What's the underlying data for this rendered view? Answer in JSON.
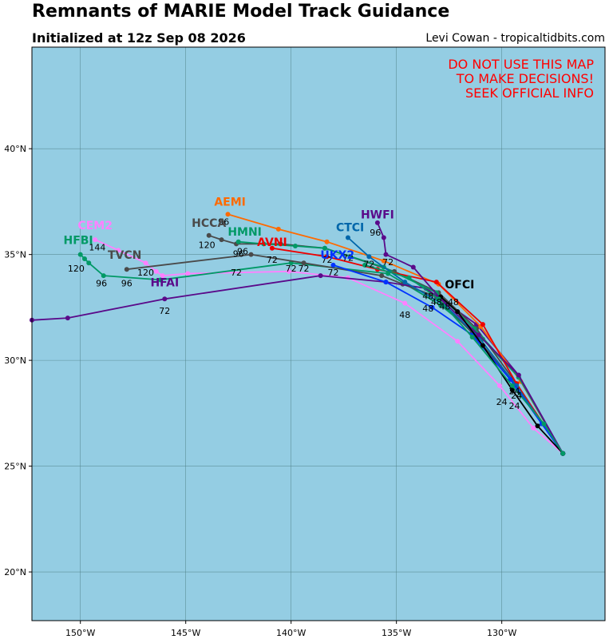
{
  "header": {
    "title": "Remnants of MARIE Model Track Guidance",
    "subtitle": "Initialized at 12z Sep 08 2026",
    "credit": "Levi Cowan - tropicaltidbits.com"
  },
  "warning": [
    "DO NOT USE THIS MAP",
    "TO MAKE DECISIONS!",
    "SEEK OFFICIAL INFO"
  ],
  "colors": {
    "ocean": "#94cde3",
    "grid": "#4f7f86",
    "frame": "#000000"
  },
  "axes": {
    "lon_ticks": [
      {
        "v": -150,
        "label": "150°W"
      },
      {
        "v": -145,
        "label": "145°W"
      },
      {
        "v": -140,
        "label": "140°W"
      },
      {
        "v": -135,
        "label": "135°W"
      },
      {
        "v": -130,
        "label": "130°W"
      }
    ],
    "lat_ticks": [
      {
        "v": 40,
        "label": "40°N"
      },
      {
        "v": 35,
        "label": "35°N"
      },
      {
        "v": 30,
        "label": "30°N"
      },
      {
        "v": 25,
        "label": "25°N"
      },
      {
        "v": 20,
        "label": "20°N"
      }
    ],
    "lon_range": [
      -152.3,
      -125.1
    ],
    "lat_range": [
      17.7,
      44.8
    ]
  },
  "chart_data": {
    "type": "line",
    "x_unit": "longitude (degrees, negative = W)",
    "y_unit": "latitude (degrees N)",
    "series": [
      {
        "name": "CEM2",
        "color": "#ff80ff",
        "label_text": "CEM2",
        "label_at": [
          -149.3,
          36.2
        ],
        "points": [
          [
            -127.1,
            25.6
          ],
          [
            -128.5,
            26.8
          ],
          [
            -130.1,
            28.8
          ],
          [
            -132.1,
            30.9
          ],
          [
            -134.6,
            32.7
          ],
          [
            -137.3,
            33.9
          ],
          [
            -140.1,
            34.2
          ],
          [
            -144.9,
            34.1
          ],
          [
            -146.1,
            34.0
          ],
          [
            -146.4,
            34.2
          ],
          [
            -146.9,
            34.6
          ],
          [
            -148.2,
            35.2
          ],
          [
            -149.3,
            35.7
          ]
        ],
        "hour_labels": [
          {
            "text": "48",
            "at": [
              -134.6,
              32.0
            ]
          },
          {
            "text": "144",
            "at": [
              -149.2,
              35.2
            ]
          }
        ]
      },
      {
        "name": "HFBI",
        "color": "#009966",
        "label_text": "HFBI",
        "label_at": [
          -150.1,
          35.5
        ],
        "points": [
          [
            -127.1,
            25.6
          ],
          [
            -129.2,
            29.2
          ],
          [
            -130.9,
            31.0
          ],
          [
            -132.9,
            32.6
          ],
          [
            -135.4,
            34.1
          ],
          [
            -140.0,
            34.6
          ],
          [
            -146.2,
            33.8
          ],
          [
            -148.9,
            34.0
          ],
          [
            -149.6,
            34.6
          ],
          [
            -149.8,
            34.8
          ],
          [
            -150.0,
            35.0
          ]
        ],
        "hour_labels": [
          {
            "text": "120",
            "at": [
              -150.2,
              34.2
            ]
          },
          {
            "text": "96",
            "at": [
              -149.0,
              33.5
            ]
          }
        ]
      },
      {
        "name": "TVCN",
        "color": "#4a4a4a",
        "label_text": "TVCN",
        "label_at": [
          -147.9,
          34.8
        ],
        "points": [
          [
            -127.1,
            25.6
          ],
          [
            -129.3,
            28.8
          ],
          [
            -131.4,
            31.3
          ],
          [
            -133.1,
            33.0
          ],
          [
            -134.7,
            33.6
          ],
          [
            -135.7,
            34.0
          ],
          [
            -139.4,
            34.6
          ],
          [
            -141.9,
            35.0
          ],
          [
            -147.8,
            34.3
          ]
        ],
        "hour_labels": [
          {
            "text": "96",
            "at": [
              -147.8,
              33.5
            ]
          },
          {
            "text": "120",
            "at": [
              -146.9,
              34.0
            ]
          }
        ]
      },
      {
        "name": "HFAI",
        "color": "#5a0a8a",
        "label_text": "HFAI",
        "label_at": [
          -146.0,
          33.5
        ],
        "points": [
          [
            -127.1,
            25.6
          ],
          [
            -129.2,
            29.3
          ],
          [
            -131.2,
            31.7
          ],
          [
            -133.6,
            33.4
          ],
          [
            -135.5,
            33.7
          ],
          [
            -138.6,
            34.0
          ],
          [
            -146.0,
            32.9
          ],
          [
            -150.6,
            32.0
          ],
          [
            -152.3,
            31.9
          ]
        ],
        "hour_labels": [
          {
            "text": "72",
            "at": [
              -146.0,
              32.2
            ]
          }
        ]
      },
      {
        "name": "AEMI",
        "color": "#ff6a00",
        "label_text": "AEMI",
        "label_at": [
          -142.9,
          37.3
        ],
        "points": [
          [
            -127.1,
            25.6
          ],
          [
            -129.1,
            29.0
          ],
          [
            -131.0,
            31.6
          ],
          [
            -133.0,
            33.6
          ],
          [
            -135.6,
            34.7
          ],
          [
            -138.3,
            35.6
          ],
          [
            -140.6,
            36.2
          ],
          [
            -143.0,
            36.9
          ]
        ],
        "hour_labels": [
          {
            "text": "96",
            "at": [
              -143.2,
              36.4
            ]
          }
        ]
      },
      {
        "name": "HCCA",
        "color": "#4a4a4a",
        "label_text": "HCCA",
        "label_at": [
          -143.9,
          36.3
        ],
        "points": [
          [
            -127.1,
            25.6
          ],
          [
            -129.3,
            28.9
          ],
          [
            -131.2,
            31.5
          ],
          [
            -133.0,
            33.2
          ],
          [
            -135.1,
            34.2
          ],
          [
            -138.4,
            35.3
          ],
          [
            -140.5,
            35.5
          ],
          [
            -142.6,
            35.5
          ],
          [
            -143.3,
            35.7
          ],
          [
            -143.9,
            35.9
          ]
        ],
        "hour_labels": [
          {
            "text": "120",
            "at": [
              -144.0,
              35.3
            ]
          },
          {
            "text": "96",
            "at": [
              -142.5,
              34.9
            ]
          }
        ]
      },
      {
        "name": "HMNI",
        "color": "#009966",
        "label_text": "HMNI",
        "label_at": [
          -142.2,
          35.9
        ],
        "points": [
          [
            -127.1,
            25.6
          ],
          [
            -129.2,
            29.2
          ],
          [
            -131.3,
            31.5
          ],
          [
            -133.1,
            33.2
          ],
          [
            -135.6,
            34.4
          ],
          [
            -138.4,
            35.3
          ],
          [
            -139.8,
            35.4
          ],
          [
            -141.3,
            35.5
          ],
          [
            -142.5,
            35.6
          ]
        ],
        "hour_labels": [
          {
            "text": "96",
            "at": [
              -142.3,
              35.0
            ]
          }
        ]
      },
      {
        "name": "AVNI",
        "color": "#ee0000",
        "label_text": "AVNI",
        "label_at": [
          -140.9,
          35.4
        ],
        "points": [
          [
            -127.1,
            25.6
          ],
          [
            -129.3,
            28.9
          ],
          [
            -130.9,
            31.7
          ],
          [
            -133.1,
            33.7
          ],
          [
            -135.9,
            34.3
          ],
          [
            -138.3,
            34.9
          ],
          [
            -140.9,
            35.3
          ]
        ],
        "hour_labels": [
          {
            "text": "72",
            "at": [
              -140.9,
              34.6
            ]
          },
          {
            "text": "72",
            "at": [
              -138.3,
              34.6
            ]
          }
        ]
      },
      {
        "name": "CTCI",
        "color": "#0066aa",
        "label_text": "CTCI",
        "label_at": [
          -137.2,
          36.1
        ],
        "points": [
          [
            -127.1,
            25.6
          ],
          [
            -129.3,
            28.8
          ],
          [
            -131.1,
            31.1
          ],
          [
            -132.7,
            32.6
          ],
          [
            -134.6,
            33.7
          ],
          [
            -136.3,
            34.9
          ],
          [
            -137.3,
            35.8
          ]
        ],
        "hour_labels": [
          {
            "text": "72",
            "at": [
              -136.3,
              34.4
            ]
          }
        ]
      },
      {
        "name": "HWFI",
        "color": "#5a0a8a",
        "label_text": "HWFI",
        "label_at": [
          -135.9,
          36.7
        ],
        "points": [
          [
            -127.1,
            25.6
          ],
          [
            -129.2,
            29.3
          ],
          [
            -131.1,
            31.2
          ],
          [
            -132.9,
            32.9
          ],
          [
            -134.2,
            34.4
          ],
          [
            -135.5,
            35.0
          ],
          [
            -135.6,
            35.8
          ],
          [
            -135.9,
            36.5
          ]
        ],
        "hour_labels": [
          {
            "text": "96",
            "at": [
              -136.0,
              35.9
            ]
          },
          {
            "text": "72",
            "at": [
              -135.4,
              34.5
            ]
          }
        ]
      },
      {
        "name": "UKX2",
        "color": "#0033ff",
        "label_text": "UKX2",
        "label_at": [
          -137.8,
          34.8
        ],
        "points": [
          [
            -127.1,
            25.6
          ],
          [
            -128.1,
            27.0
          ],
          [
            -129.6,
            29.1
          ],
          [
            -131.4,
            31.2
          ],
          [
            -133.3,
            32.5
          ],
          [
            -135.5,
            33.7
          ],
          [
            -138.0,
            34.5
          ]
        ],
        "hour_labels": [
          {
            "text": "72",
            "at": [
              -138.0,
              34.0
            ]
          },
          {
            "text": "72",
            "at": [
              -137.3,
              34.7
            ]
          }
        ]
      },
      {
        "name": "OFCI",
        "color": "#000000",
        "label_text": "OFCI",
        "label_at": [
          -132.0,
          33.4
        ],
        "points": [
          [
            -127.1,
            25.6
          ],
          [
            -128.3,
            26.9
          ],
          [
            -129.5,
            28.6
          ],
          [
            -130.9,
            30.7
          ],
          [
            -132.1,
            32.3
          ],
          [
            -132.9,
            33.0
          ]
        ],
        "hour_labels": [
          {
            "text": "48",
            "at": [
              -132.7,
              32.4
            ]
          }
        ]
      },
      {
        "name": "Consensus",
        "color": "#009966",
        "label_text": "",
        "label_at": [
          0,
          0
        ],
        "points": [
          [
            -127.1,
            25.6
          ],
          [
            -128.0,
            27.0
          ],
          [
            -129.5,
            28.8
          ],
          [
            -131.4,
            31.1
          ],
          [
            -133.0,
            32.9
          ],
          [
            -134.4,
            33.9
          ],
          [
            -136.5,
            34.5
          ]
        ],
        "hour_labels": [
          {
            "text": "24",
            "at": [
              -130.0,
              27.9
            ]
          },
          {
            "text": "24",
            "at": [
              -129.4,
              27.7
            ]
          },
          {
            "text": "24",
            "at": [
              -129.4,
              28.4
            ]
          },
          {
            "text": "24",
            "at": [
              -129.3,
              28.2
            ]
          },
          {
            "text": "48",
            "at": [
              -133.1,
              32.6
            ]
          },
          {
            "text": "48",
            "at": [
              -133.5,
              32.9
            ]
          },
          {
            "text": "48",
            "at": [
              -133.5,
              32.3
            ]
          },
          {
            "text": "48",
            "at": [
              -132.3,
              32.6
            ]
          },
          {
            "text": "72",
            "at": [
              -142.6,
              34.0
            ]
          },
          {
            "text": "72",
            "at": [
              -140.0,
              34.2
            ]
          },
          {
            "text": "72",
            "at": [
              -139.4,
              34.2
            ]
          }
        ]
      }
    ]
  }
}
